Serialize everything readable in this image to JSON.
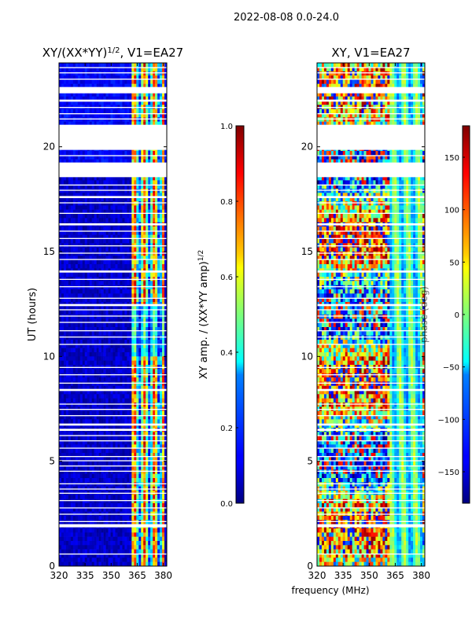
{
  "suptitle": "2022-08-08 0.0-24.0",
  "chart_data": [
    {
      "type": "heatmap",
      "title_text": "XY/(XX*YY)",
      "title_sup": "1/2",
      "title_suffix": ", V1=EA27",
      "ylabel": "UT (hours)",
      "xlabel": "",
      "xlim": [
        320,
        382
      ],
      "ylim": [
        0,
        24
      ],
      "xticks": [
        "320",
        "335",
        "350",
        "365",
        "380"
      ],
      "xtick_values": [
        320,
        335,
        350,
        365,
        380
      ],
      "yticks": [
        "0",
        "5",
        "10",
        "15",
        "20"
      ],
      "ytick_values": [
        0,
        5,
        10,
        15,
        20
      ],
      "description_value_range": [
        0.0,
        1.0
      ]
    },
    {
      "type": "heatmap",
      "title": "XY, V1=EA27",
      "ylabel": "",
      "xlabel": "frequency (MHz)",
      "xlim": [
        320,
        382
      ],
      "ylim": [
        0,
        24
      ],
      "xticks": [
        "320",
        "335",
        "350",
        "365",
        "380"
      ],
      "xtick_values": [
        320,
        335,
        350,
        365,
        380
      ],
      "yticks": [
        "0",
        "5",
        "10",
        "15",
        "20"
      ],
      "ytick_values": [
        0,
        5,
        10,
        15,
        20
      ]
    }
  ],
  "colorbars": [
    {
      "label_text": "XY amp. / (XX*YY amp)",
      "label_sup": "1/2",
      "range": [
        0.0,
        1.0
      ],
      "ticks": [
        "0.0",
        "0.2",
        "0.4",
        "0.6",
        "0.8",
        "1.0"
      ],
      "tick_values": [
        0.0,
        0.2,
        0.4,
        0.6,
        0.8,
        1.0
      ]
    },
    {
      "label": "phase (deg)",
      "range": [
        -180,
        180
      ],
      "ticks": [
        "−150",
        "−100",
        "−50",
        "0",
        "50",
        "100",
        "150"
      ],
      "tick_values": [
        -150,
        -100,
        -50,
        0,
        50,
        100,
        150
      ]
    }
  ],
  "flagged_hours": [
    [
      0.55,
      0.6
    ],
    [
      1.85,
      2.0
    ],
    [
      2.1,
      2.15
    ],
    [
      2.45,
      2.5
    ],
    [
      2.75,
      2.8
    ],
    [
      3.1,
      3.15
    ],
    [
      3.45,
      3.5
    ],
    [
      3.65,
      3.7
    ],
    [
      3.9,
      3.95
    ],
    [
      4.5,
      4.55
    ],
    [
      4.75,
      4.8
    ],
    [
      5.0,
      5.05
    ],
    [
      5.2,
      5.25
    ],
    [
      5.6,
      5.65
    ],
    [
      5.95,
      6.0
    ],
    [
      6.2,
      6.25
    ],
    [
      6.45,
      6.55
    ],
    [
      6.7,
      6.8
    ],
    [
      7.15,
      7.2
    ],
    [
      7.45,
      7.5
    ],
    [
      7.7,
      7.75
    ],
    [
      8.35,
      8.45
    ],
    [
      8.7,
      8.75
    ],
    [
      9.1,
      9.15
    ],
    [
      9.45,
      9.5
    ],
    [
      10.55,
      10.6
    ],
    [
      10.9,
      10.95
    ],
    [
      11.2,
      11.25
    ],
    [
      11.6,
      11.65
    ],
    [
      11.9,
      11.95
    ],
    [
      12.2,
      12.25
    ],
    [
      12.4,
      12.5
    ],
    [
      12.75,
      12.8
    ],
    [
      13.3,
      13.35
    ],
    [
      13.65,
      13.7
    ],
    [
      14.0,
      14.1
    ],
    [
      14.6,
      14.65
    ],
    [
      14.9,
      14.95
    ],
    [
      15.25,
      15.3
    ],
    [
      15.6,
      15.65
    ],
    [
      15.95,
      16.0
    ],
    [
      16.25,
      16.35
    ],
    [
      16.8,
      16.85
    ],
    [
      17.3,
      17.35
    ],
    [
      17.55,
      17.65
    ],
    [
      17.9,
      17.95
    ],
    [
      18.15,
      18.2
    ],
    [
      18.55,
      19.25
    ],
    [
      19.55,
      19.6
    ],
    [
      19.85,
      21.05
    ],
    [
      21.3,
      21.35
    ],
    [
      21.55,
      21.6
    ],
    [
      21.85,
      21.9
    ],
    [
      22.15,
      22.25
    ],
    [
      22.55,
      22.85
    ],
    [
      23.2,
      23.25
    ],
    [
      23.5,
      23.55
    ],
    [
      23.75,
      23.8
    ]
  ]
}
